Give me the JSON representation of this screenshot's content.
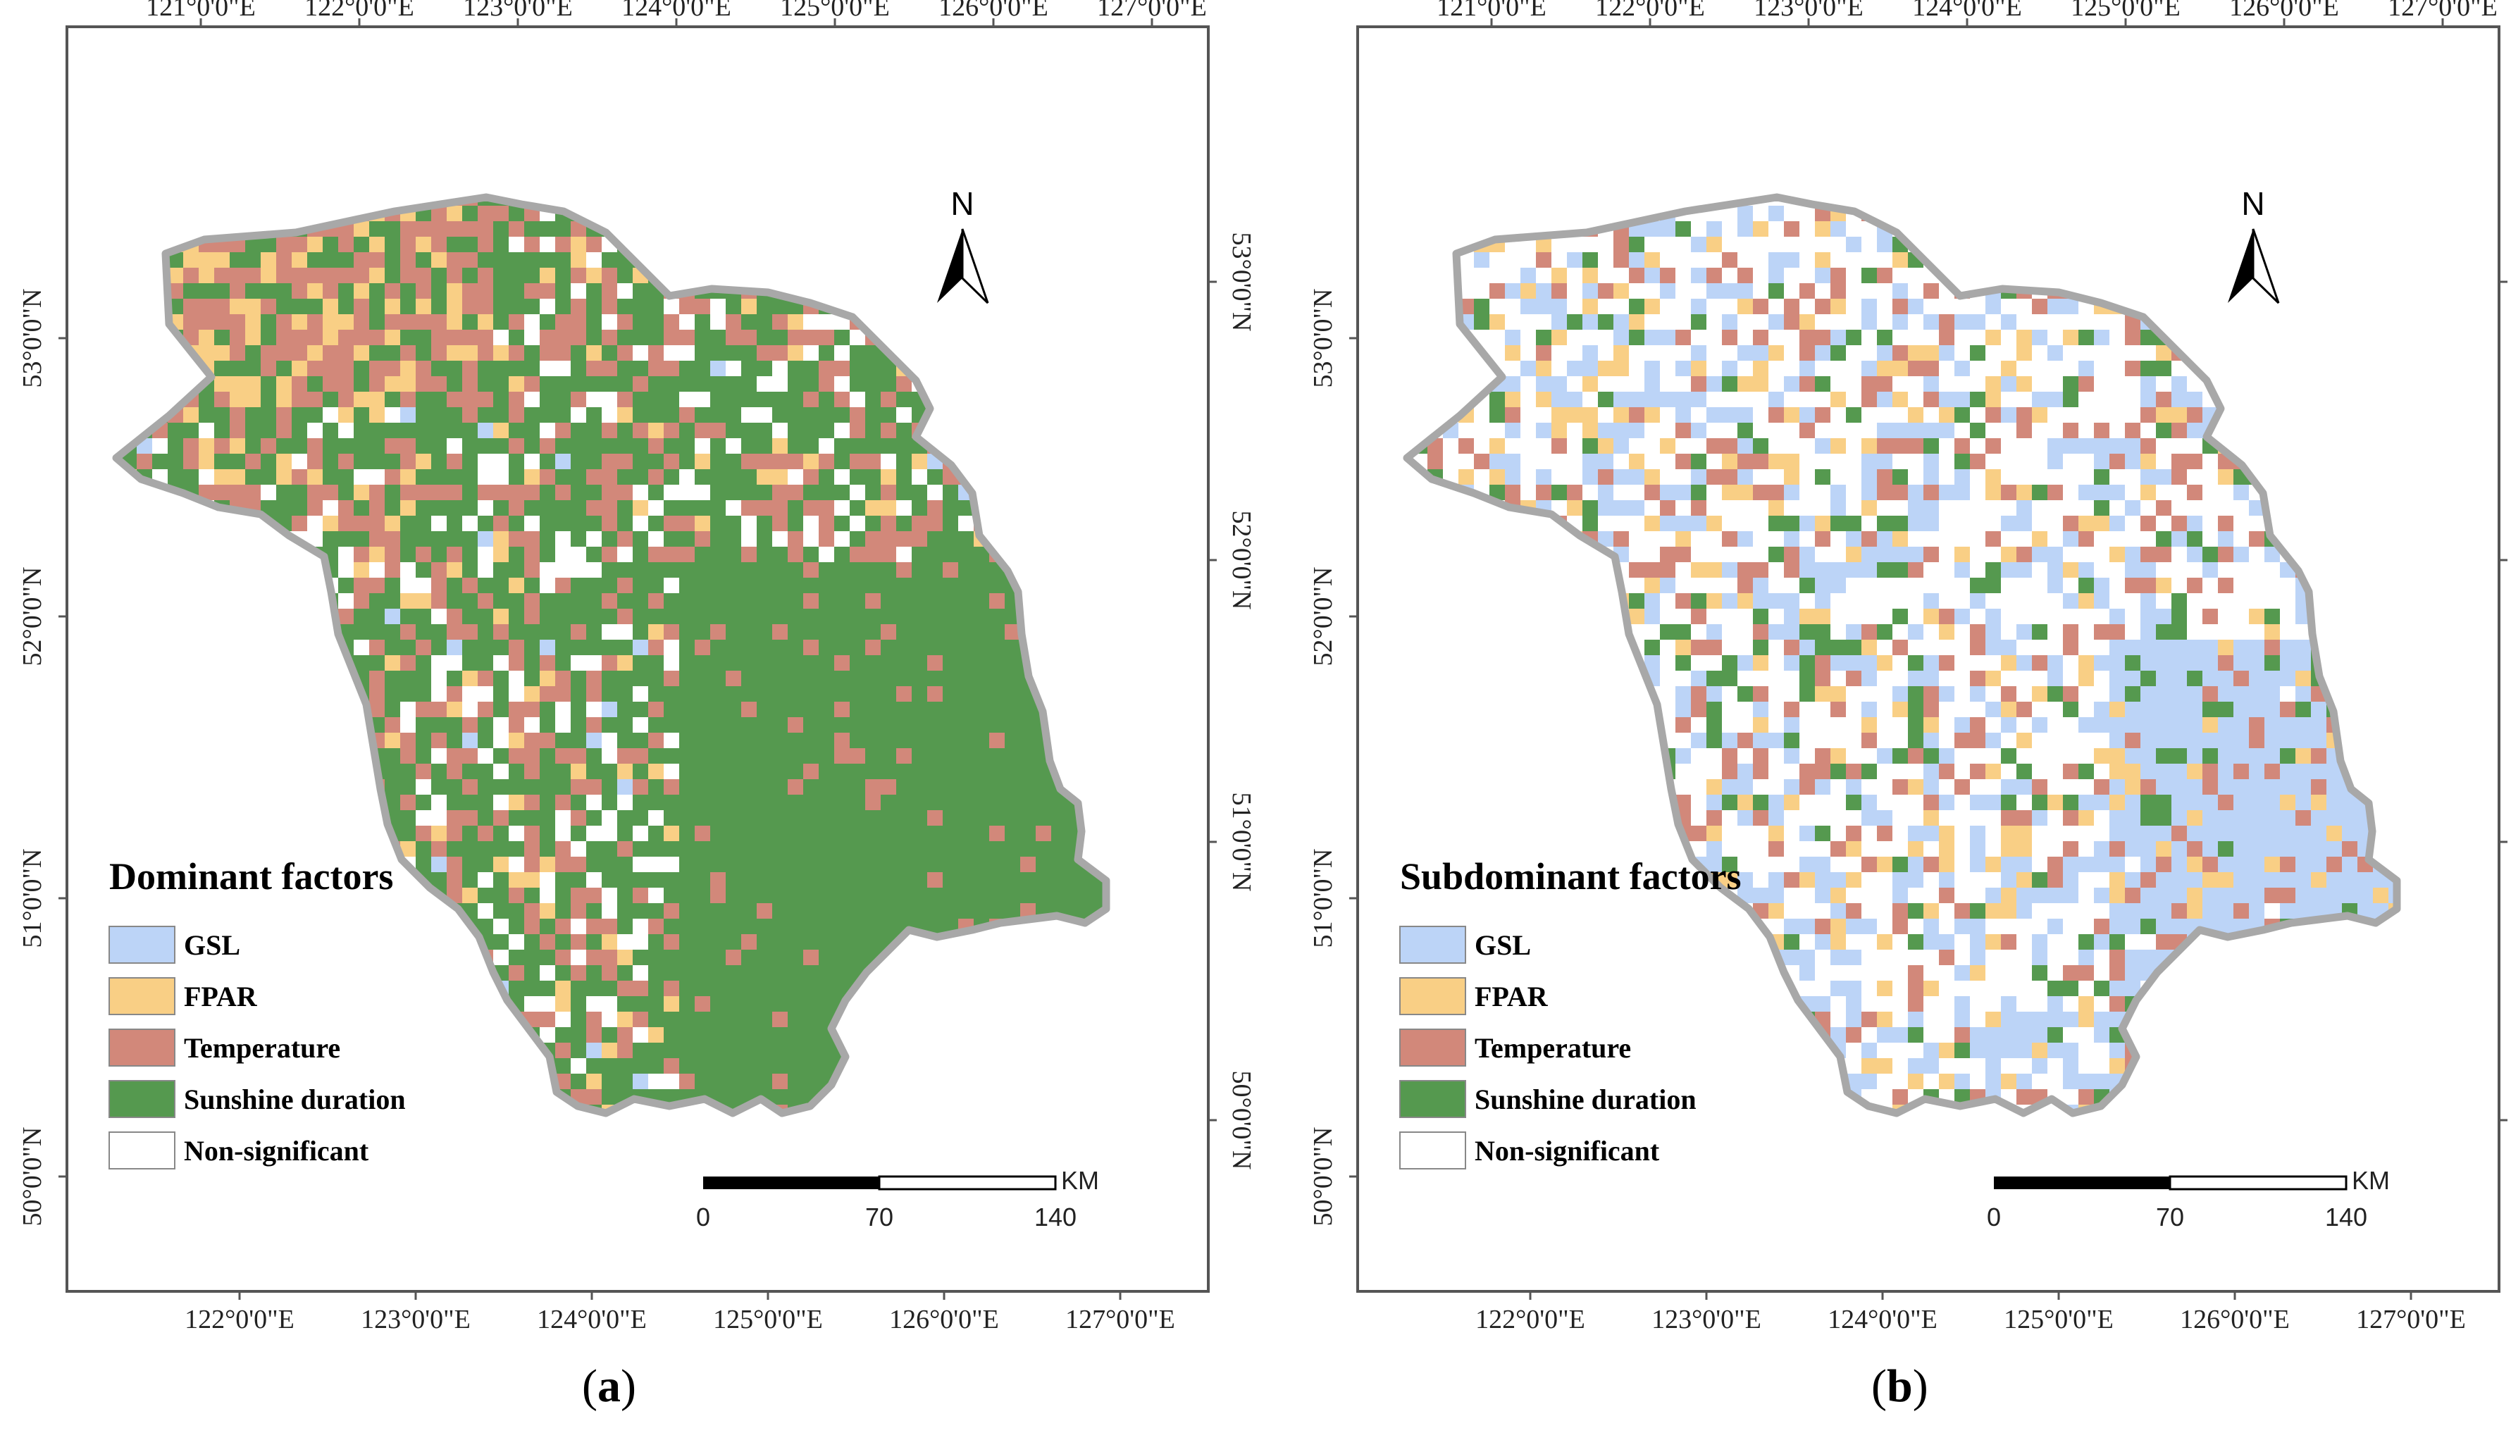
{
  "panels": [
    {
      "id": "a",
      "caption": "(a)",
      "caption_letter": "a",
      "legend_title": "Dominant factors",
      "colors": {
        "gsl": "#bcd4f7",
        "fpar": "#f9cf85",
        "temperature": "#d2887a",
        "sunshine": "#55994f",
        "nonsig": "#ffffff"
      },
      "mix": {
        "sunshine": 0.5,
        "temperature": 0.24,
        "fpar": 0.07,
        "gsl": 0.02,
        "nonsig": 0.17
      }
    },
    {
      "id": "b",
      "caption": "(b)",
      "caption_letter": "b",
      "legend_title": "Subdominant factors",
      "colors": {
        "gsl": "#bcd4f7",
        "fpar": "#f9cf85",
        "temperature": "#d2887a",
        "sunshine": "#55994f",
        "nonsig": "#ffffff"
      },
      "mix": {
        "sunshine": 0.08,
        "temperature": 0.14,
        "fpar": 0.1,
        "gsl": 0.22,
        "nonsig": 0.46
      }
    }
  ],
  "legend_items": [
    "GSL",
    "FPAR",
    "Temperature",
    "Sunshine duration",
    "Non-significant"
  ],
  "lon_ticks_top": [
    "121°0'0\"E",
    "122°0'0\"E",
    "123°0'0\"E",
    "124°0'0\"E",
    "125°0'0\"E",
    "126°0'0\"E",
    "127°0'0\"E"
  ],
  "lon_ticks_bottom": [
    "122°0'0\"E",
    "123°0'0\"E",
    "124°0'0\"E",
    "125°0'0\"E",
    "126°0'0\"E",
    "127°0'0\"E"
  ],
  "lat_ticks": [
    "53°0'0\"N",
    "52°0'0\"N",
    "51°0'0\"N",
    "50°0'0\"N"
  ],
  "north_arrow_label": "N",
  "scale_bar": {
    "ticks": [
      "0",
      "70",
      "140"
    ],
    "unit": "KM"
  }
}
